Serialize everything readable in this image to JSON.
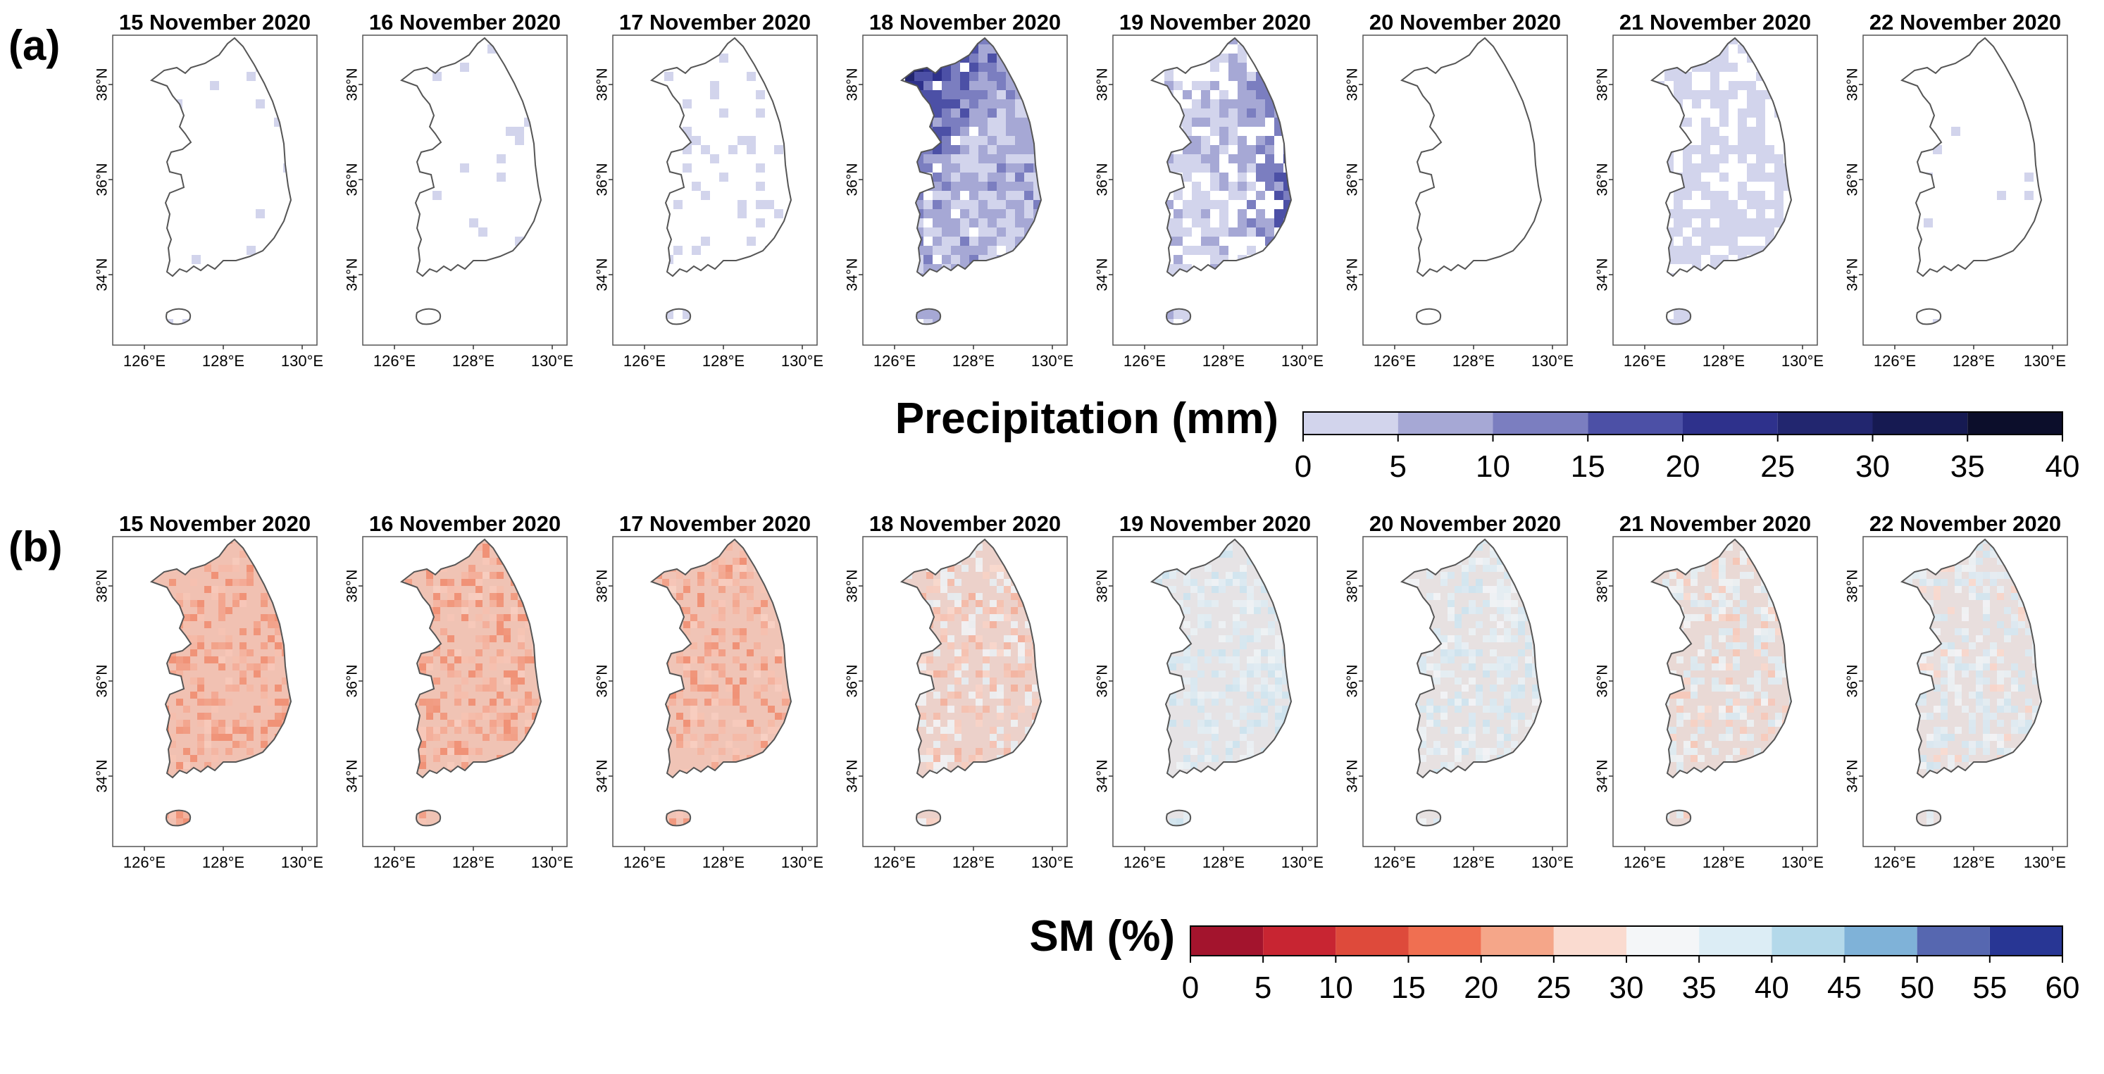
{
  "figure": {
    "panel_a": {
      "label": "(a)",
      "variable": "Precipitation (mm)",
      "colorbar": {
        "title": "Precipitation (mm)",
        "ticks": [
          "0",
          "5",
          "10",
          "15",
          "20",
          "25",
          "30",
          "35",
          "40"
        ],
        "colors": [
          "#d2d4ec",
          "#a6a8d5",
          "#7b7ec0",
          "#4c50a6",
          "#2e318c",
          "#22266f",
          "#161a52",
          "#0c0e2b"
        ]
      },
      "maps": [
        {
          "date": "15 November 2020",
          "level": 0.03
        },
        {
          "date": "16 November 2020",
          "level": 0.03
        },
        {
          "date": "17 November 2020",
          "level": 0.12
        },
        {
          "date": "18 November 2020",
          "level": 0.95
        },
        {
          "date": "19 November 2020",
          "level": 0.65
        },
        {
          "date": "20 November 2020",
          "level": 0.0
        },
        {
          "date": "21 November 2020",
          "level": 0.6
        },
        {
          "date": "22 November 2020",
          "level": 0.02
        }
      ]
    },
    "panel_b": {
      "label": "(b)",
      "variable": "SM (%)",
      "colorbar": {
        "title": "SM (%)",
        "ticks": [
          "0",
          "5",
          "10",
          "15",
          "20",
          "25",
          "30",
          "35",
          "40",
          "45",
          "50",
          "55",
          "60"
        ],
        "colors": [
          "#a3142d",
          "#c82532",
          "#de4a3b",
          "#f06f51",
          "#f5a689",
          "#fadbd0",
          "#f4f6f8",
          "#dcedf5",
          "#b4d9ea",
          "#7fb2d8",
          "#5667b0",
          "#283694"
        ]
      },
      "maps": [
        {
          "date": "15 November 2020",
          "dryness": 0.85
        },
        {
          "date": "16 November 2020",
          "dryness": 0.82
        },
        {
          "date": "17 November 2020",
          "dryness": 0.8
        },
        {
          "date": "18 November 2020",
          "dryness": 0.55
        },
        {
          "date": "19 November 2020",
          "dryness": 0.2
        },
        {
          "date": "20 November 2020",
          "dryness": 0.25
        },
        {
          "date": "21 November 2020",
          "dryness": 0.4
        },
        {
          "date": "22 November 2020",
          "dryness": 0.3
        }
      ]
    },
    "axes": {
      "lat_ticks": [
        "38°N",
        "36°N",
        "34°N"
      ],
      "lon_ticks": [
        "126°E",
        "128°E",
        "130°E"
      ],
      "lon_ticks_last_panel": [
        "126°E",
        "128°E",
        "130°E"
      ]
    }
  }
}
